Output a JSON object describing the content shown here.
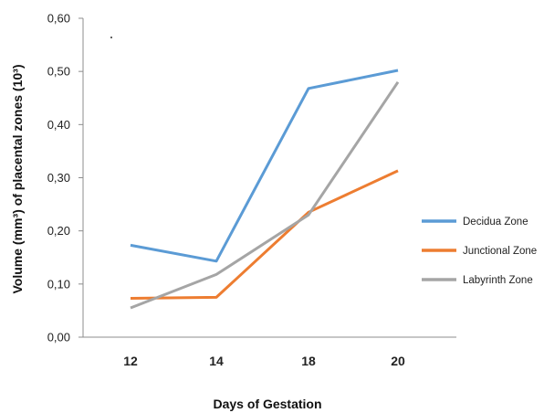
{
  "chart_data": {
    "type": "line",
    "categories": [
      "12",
      "14",
      "18",
      "20"
    ],
    "xlabel": "Days of Gestation",
    "ylabel": "Volume (mm³) of placental zones (10³)",
    "ylim": [
      0,
      0.6
    ],
    "yticks": [
      "0,00",
      "0,10",
      "0,20",
      "0,30",
      "0,40",
      "0,50",
      "0,60"
    ],
    "grid": false,
    "legend_position": "right",
    "series": [
      {
        "name": "Decidua Zone",
        "color": "#5B9BD5",
        "values": [
          0.173,
          0.143,
          0.468,
          0.502
        ]
      },
      {
        "name": "Junctional Zone",
        "color": "#ED7D31",
        "values": [
          0.073,
          0.075,
          0.235,
          0.313
        ]
      },
      {
        "name": "Labyrinth Zone",
        "color": "#A5A5A5",
        "values": [
          0.055,
          0.118,
          0.23,
          0.48
        ]
      }
    ]
  }
}
